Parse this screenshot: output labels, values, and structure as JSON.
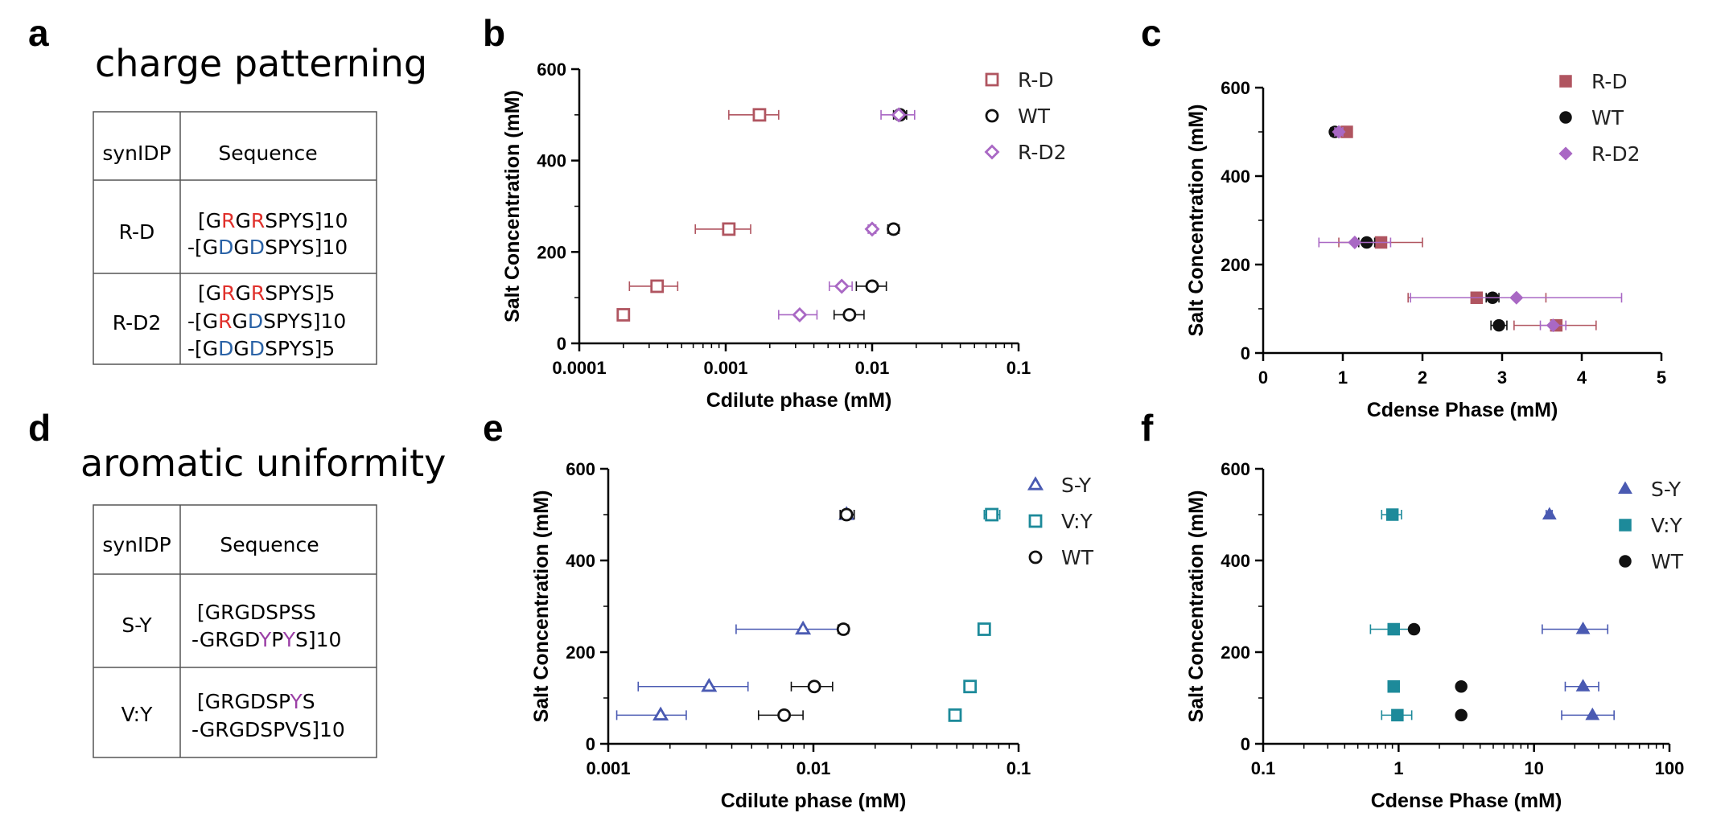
{
  "panels": {
    "a": "a",
    "b": "b",
    "c": "c",
    "d": "d",
    "e": "e",
    "f": "f"
  },
  "colors": {
    "rd": "#b05560",
    "wt": "#111111",
    "rd2": "#a968c4",
    "sy": "#4a5ab2",
    "vy": "#1d8a9a",
    "red_res": "#e0302b",
    "blue_res": "#2a62a6",
    "purple_res": "#9b3fa6"
  },
  "tables": [
    {
      "title": "charge patterning",
      "headers": [
        "synIDP",
        "Sequence"
      ],
      "rows": [
        {
          "name": "R-D",
          "lines": [
            [
              {
                "t": "[G",
                "c": ""
              },
              {
                "t": "R",
                "c": "red_res"
              },
              {
                "t": "G",
                "c": ""
              },
              {
                "t": "R",
                "c": "red_res"
              },
              {
                "t": "SPYS]10",
                "c": ""
              }
            ],
            [
              {
                "t": "-[G",
                "c": ""
              },
              {
                "t": "D",
                "c": "blue_res"
              },
              {
                "t": "G",
                "c": ""
              },
              {
                "t": "D",
                "c": "blue_res"
              },
              {
                "t": "SPYS]10",
                "c": ""
              }
            ]
          ]
        },
        {
          "name": "R-D2",
          "lines": [
            [
              {
                "t": "[G",
                "c": ""
              },
              {
                "t": "R",
                "c": "red_res"
              },
              {
                "t": "G",
                "c": ""
              },
              {
                "t": "R",
                "c": "red_res"
              },
              {
                "t": "SPYS]5",
                "c": ""
              }
            ],
            [
              {
                "t": "-[G",
                "c": ""
              },
              {
                "t": "R",
                "c": "red_res"
              },
              {
                "t": "G",
                "c": ""
              },
              {
                "t": "D",
                "c": "blue_res"
              },
              {
                "t": "SPYS]10",
                "c": ""
              }
            ],
            [
              {
                "t": "-[G",
                "c": ""
              },
              {
                "t": "D",
                "c": "blue_res"
              },
              {
                "t": "G",
                "c": ""
              },
              {
                "t": "D",
                "c": "blue_res"
              },
              {
                "t": "SPYS]5",
                "c": ""
              }
            ]
          ]
        }
      ]
    },
    {
      "title": "aromatic uniformity",
      "headers": [
        "synIDP",
        "Sequence"
      ],
      "rows": [
        {
          "name": "S-Y",
          "lines": [
            [
              {
                "t": "[GRGDSPSS",
                "c": ""
              }
            ],
            [
              {
                "t": "-GRGD",
                "c": ""
              },
              {
                "t": "Y",
                "c": "purple_res"
              },
              {
                "t": "P",
                "c": ""
              },
              {
                "t": "Y",
                "c": "purple_res"
              },
              {
                "t": "S]10",
                "c": ""
              }
            ]
          ]
        },
        {
          "name": "V:Y",
          "lines": [
            [
              {
                "t": "[GRGDSP",
                "c": ""
              },
              {
                "t": "Y",
                "c": "purple_res"
              },
              {
                "t": "S",
                "c": ""
              }
            ],
            [
              {
                "t": "-GRGDSPVS]10",
                "c": ""
              }
            ]
          ]
        }
      ]
    }
  ],
  "chart_data": [
    {
      "panel": "b",
      "type": "scatter",
      "xscale": "log",
      "xlim": [
        0.0001,
        0.1
      ],
      "xticks": [
        0.0001,
        0.001,
        0.01,
        0.1
      ],
      "xtick_labels": [
        "0.0001",
        "0.001",
        "0.01",
        "0.1"
      ],
      "ylim": [
        0,
        600
      ],
      "yticks": [
        0,
        200,
        400,
        600
      ],
      "ytick_labels": [
        "0",
        "200",
        "400",
        "600"
      ],
      "xlabel": "Cdilute phase (mM)",
      "ylabel": "Salt Concentration (mM)",
      "legend_position": "top-right",
      "series": [
        {
          "name": "R-D",
          "marker": "square-open",
          "color": "rd",
          "points": [
            {
              "x": 0.0017,
              "y": 500,
              "xlo": 0.00105,
              "xhi": 0.0023
            },
            {
              "x": 0.00105,
              "y": 250,
              "xlo": 0.00062,
              "xhi": 0.00148
            },
            {
              "x": 0.00034,
              "y": 125,
              "xlo": 0.00022,
              "xhi": 0.00047
            },
            {
              "x": 0.0002,
              "y": 62.5,
              "xlo": 0.000187,
              "xhi": 0.000213
            }
          ]
        },
        {
          "name": "WT",
          "marker": "circle-open",
          "color": "wt",
          "points": [
            {
              "x": 0.0155,
              "y": 500,
              "xlo": 0.014,
              "xhi": 0.0172
            },
            {
              "x": 0.014,
              "y": 250,
              "xlo": 0.0128,
              "xhi": 0.0152
            },
            {
              "x": 0.01,
              "y": 125,
              "xlo": 0.0078,
              "xhi": 0.0125
            },
            {
              "x": 0.007,
              "y": 62.5,
              "xlo": 0.0055,
              "xhi": 0.0088
            }
          ]
        },
        {
          "name": "R-D2",
          "marker": "diamond-open",
          "color": "rd2",
          "points": [
            {
              "x": 0.0152,
              "y": 500,
              "xlo": 0.0115,
              "xhi": 0.0195
            },
            {
              "x": 0.01,
              "y": 250,
              "xlo": 0.0094,
              "xhi": 0.0106
            },
            {
              "x": 0.0062,
              "y": 125,
              "xlo": 0.0051,
              "xhi": 0.0073
            },
            {
              "x": 0.0032,
              "y": 62.5,
              "xlo": 0.0023,
              "xhi": 0.0042
            }
          ]
        }
      ]
    },
    {
      "panel": "c",
      "type": "scatter",
      "xscale": "linear",
      "xlim": [
        0,
        5
      ],
      "xticks": [
        0,
        1,
        2,
        3,
        4,
        5
      ],
      "xtick_labels": [
        "0",
        "1",
        "2",
        "3",
        "4",
        "5"
      ],
      "ylim": [
        0,
        600
      ],
      "yticks": [
        0,
        200,
        400,
        600
      ],
      "ytick_labels": [
        "0",
        "200",
        "400",
        "600"
      ],
      "xlabel": "Cdense Phase (mM)",
      "ylabel": "Salt Concentration (mM)",
      "legend_position": "top-right",
      "series": [
        {
          "name": "R-D",
          "marker": "square",
          "color": "rd",
          "points": [
            {
              "x": 1.05,
              "y": 500,
              "xlo": 1.0,
              "xhi": 1.1
            },
            {
              "x": 1.48,
              "y": 250,
              "xlo": 0.95,
              "xhi": 2.0
            },
            {
              "x": 2.68,
              "y": 125,
              "xlo": 1.82,
              "xhi": 3.55
            },
            {
              "x": 3.68,
              "y": 62.5,
              "xlo": 3.15,
              "xhi": 4.18
            }
          ]
        },
        {
          "name": "WT",
          "marker": "circle",
          "color": "wt",
          "points": [
            {
              "x": 0.9,
              "y": 500,
              "xlo": 0.85,
              "xhi": 0.95
            },
            {
              "x": 1.3,
              "y": 250,
              "xlo": 1.2,
              "xhi": 1.4
            },
            {
              "x": 2.88,
              "y": 125,
              "xlo": 2.8,
              "xhi": 2.96
            },
            {
              "x": 2.96,
              "y": 62.5,
              "xlo": 2.86,
              "xhi": 3.06
            }
          ]
        },
        {
          "name": "R-D2",
          "marker": "diamond",
          "color": "rd2",
          "points": [
            {
              "x": 0.95,
              "y": 500,
              "xlo": 0.9,
              "xhi": 1.0
            },
            {
              "x": 1.15,
              "y": 250,
              "xlo": 0.7,
              "xhi": 1.6
            },
            {
              "x": 3.18,
              "y": 125,
              "xlo": 1.85,
              "xhi": 4.5
            },
            {
              "x": 3.64,
              "y": 62.5,
              "xlo": 3.48,
              "xhi": 3.8
            }
          ]
        }
      ]
    },
    {
      "panel": "e",
      "type": "scatter",
      "xscale": "log",
      "xlim": [
        0.001,
        0.1
      ],
      "xticks": [
        0.001,
        0.01,
        0.1
      ],
      "xtick_labels": [
        "0.001",
        "0.01",
        "0.1"
      ],
      "ylim": [
        0,
        600
      ],
      "yticks": [
        0,
        200,
        400,
        600
      ],
      "ytick_labels": [
        "0",
        "200",
        "400",
        "600"
      ],
      "xlabel": "Cdilute phase (mM)",
      "ylabel": "Salt Concentration (mM)",
      "legend_position": "top-right",
      "series": [
        {
          "name": "S-Y",
          "marker": "triangle-open",
          "color": "sy",
          "points": [
            {
              "x": 0.0145,
              "y": 500,
              "xlo": 0.0135,
              "xhi": 0.0158
            },
            {
              "x": 0.0089,
              "y": 250,
              "xlo": 0.0042,
              "xhi": 0.0138
            },
            {
              "x": 0.0031,
              "y": 125,
              "xlo": 0.0014,
              "xhi": 0.0048
            },
            {
              "x": 0.0018,
              "y": 62.5,
              "xlo": 0.0011,
              "xhi": 0.0024
            }
          ]
        },
        {
          "name": "V:Y",
          "marker": "square-open",
          "color": "vy",
          "points": [
            {
              "x": 0.074,
              "y": 500,
              "xlo": 0.068,
              "xhi": 0.081
            },
            {
              "x": 0.068,
              "y": 250,
              "xlo": 0.066,
              "xhi": 0.07
            },
            {
              "x": 0.058,
              "y": 125,
              "xlo": 0.056,
              "xhi": 0.06
            },
            {
              "x": 0.049,
              "y": 62.5,
              "xlo": 0.047,
              "xhi": 0.051
            }
          ]
        },
        {
          "name": "WT",
          "marker": "circle-open",
          "color": "wt",
          "points": [
            {
              "x": 0.0145,
              "y": 500,
              "xlo": 0.0135,
              "xhi": 0.0158
            },
            {
              "x": 0.014,
              "y": 250,
              "xlo": 0.0132,
              "xhi": 0.0148
            },
            {
              "x": 0.0101,
              "y": 125,
              "xlo": 0.0078,
              "xhi": 0.0124
            },
            {
              "x": 0.0072,
              "y": 62.5,
              "xlo": 0.0054,
              "xhi": 0.0089
            }
          ]
        }
      ]
    },
    {
      "panel": "f",
      "type": "scatter",
      "xscale": "log",
      "xlim": [
        0.1,
        100
      ],
      "xticks": [
        0.1,
        1,
        10,
        100
      ],
      "xtick_labels": [
        "0.1",
        "1",
        "10",
        "100"
      ],
      "ylim": [
        0,
        600
      ],
      "yticks": [
        0,
        200,
        400,
        600
      ],
      "ytick_labels": [
        "0",
        "200",
        "400",
        "600"
      ],
      "xlabel": "Cdense Phase (mM)",
      "ylabel": "Salt Concentration (mM)",
      "legend_position": "top-right",
      "series": [
        {
          "name": "S-Y",
          "marker": "triangle",
          "color": "sy",
          "points": [
            {
              "x": 13,
              "y": 500,
              "xlo": 12.3,
              "xhi": 13.6
            },
            {
              "x": 23,
              "y": 250,
              "xlo": 11.5,
              "xhi": 35
            },
            {
              "x": 23,
              "y": 125,
              "xlo": 17,
              "xhi": 30
            },
            {
              "x": 27,
              "y": 62.5,
              "xlo": 16,
              "xhi": 39
            }
          ]
        },
        {
          "name": "V:Y",
          "marker": "square",
          "color": "vy",
          "points": [
            {
              "x": 0.9,
              "y": 500,
              "xlo": 0.75,
              "xhi": 1.05
            },
            {
              "x": 0.92,
              "y": 250,
              "xlo": 0.62,
              "xhi": 1.22
            },
            {
              "x": 0.92,
              "y": 125,
              "xlo": 0.88,
              "xhi": 0.96
            },
            {
              "x": 0.98,
              "y": 62.5,
              "xlo": 0.75,
              "xhi": 1.25
            }
          ]
        },
        {
          "name": "WT",
          "marker": "circle",
          "color": "wt",
          "points": [
            {
              "x": 1.3,
              "y": 250,
              "xlo": 1.25,
              "xhi": 1.35
            },
            {
              "x": 2.9,
              "y": 125,
              "xlo": 2.85,
              "xhi": 2.95
            },
            {
              "x": 2.9,
              "y": 62.5,
              "xlo": 2.85,
              "xhi": 2.95
            }
          ]
        }
      ]
    }
  ]
}
